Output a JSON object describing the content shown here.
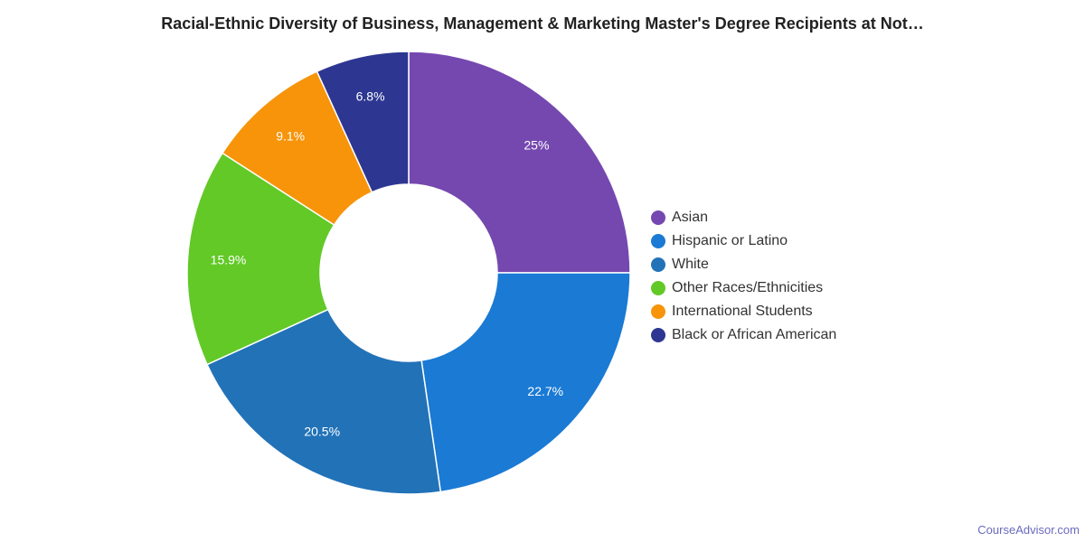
{
  "chart_data": {
    "type": "pie",
    "title": "Racial-Ethnic Diversity of Business, Management & Marketing Master's Degree Recipients at Not…",
    "donut": true,
    "legend_position": "right",
    "categories": [
      "Asian",
      "Hispanic or Latino",
      "White",
      "Other Races/Ethnicities",
      "International Students",
      "Black or African American"
    ],
    "values": [
      25,
      22.7,
      20.5,
      15.9,
      9.1,
      6.8
    ],
    "value_labels": [
      "25%",
      "22.7%",
      "20.5%",
      "15.9%",
      "9.1%",
      "6.8%"
    ],
    "colors": [
      "#7548b0",
      "#1a7ad4",
      "#2272b8",
      "#62c927",
      "#f7940a",
      "#2d3791"
    ]
  },
  "credit": {
    "text": "CourseAdvisor.com"
  }
}
